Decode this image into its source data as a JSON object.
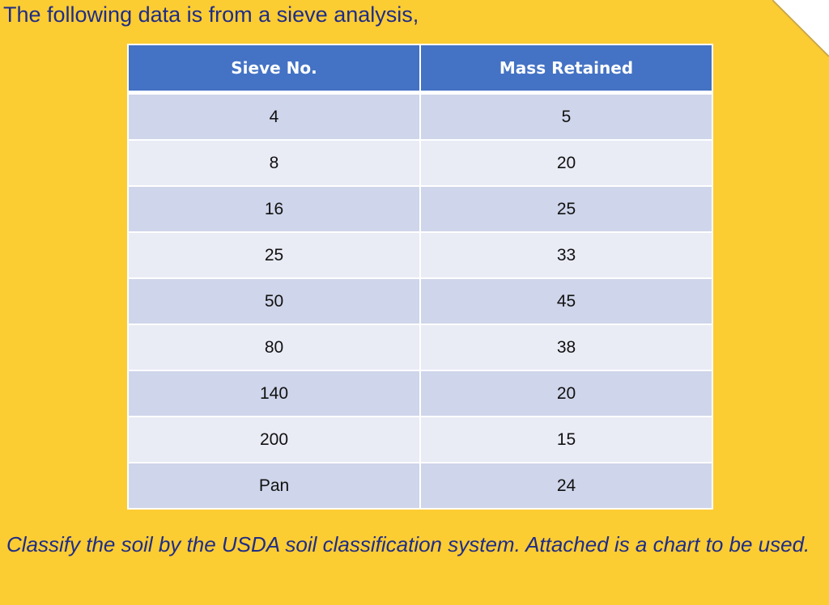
{
  "heading": "The following data is from a sieve analysis,",
  "table": {
    "headers": [
      "Sieve No.",
      "Mass Retained"
    ],
    "rows": [
      [
        "4",
        "5"
      ],
      [
        "8",
        "20"
      ],
      [
        "16",
        "25"
      ],
      [
        "25",
        "33"
      ],
      [
        "50",
        "45"
      ],
      [
        "80",
        "38"
      ],
      [
        "140",
        "20"
      ],
      [
        "200",
        "15"
      ],
      [
        "Pan",
        "24"
      ]
    ]
  },
  "question": "Classify the soil by the USDA soil classification system. Attached is a chart to be used.",
  "colors": {
    "background": "#fccc33",
    "header": "#4472c4",
    "row_odd": "#cfd5ea",
    "row_even": "#e9ebf5",
    "text_blue": "#1f2d86"
  }
}
